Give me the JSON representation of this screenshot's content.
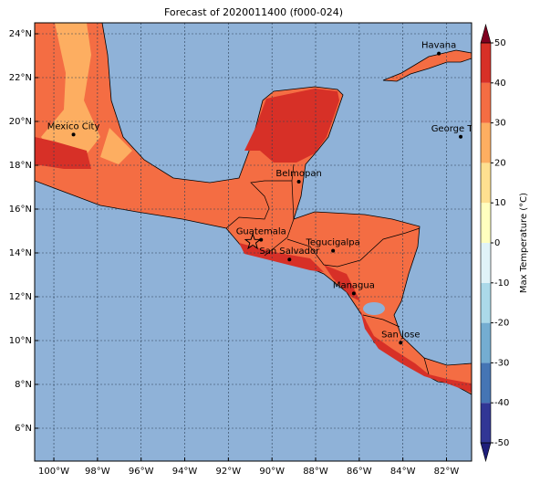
{
  "chart_data": {
    "type": "map",
    "title": "Forecast of 2020011400 (f000-024)",
    "xlim": [
      -100.88,
      -80.85
    ],
    "ylim": [
      4.5,
      24.5
    ],
    "xticks": [
      {
        "value": -100,
        "label": "100°W"
      },
      {
        "value": -98,
        "label": "98°W"
      },
      {
        "value": -96,
        "label": "96°W"
      },
      {
        "value": -94,
        "label": "94°W"
      },
      {
        "value": -92,
        "label": "92°W"
      },
      {
        "value": -90,
        "label": "90°W"
      },
      {
        "value": -88,
        "label": "88°W"
      },
      {
        "value": -86,
        "label": "86°W"
      },
      {
        "value": -84,
        "label": "84°W"
      },
      {
        "value": -82,
        "label": "82°W"
      }
    ],
    "yticks": [
      {
        "value": 6,
        "label": "6°N"
      },
      {
        "value": 8,
        "label": "8°N"
      },
      {
        "value": 10,
        "label": "10°N"
      },
      {
        "value": 12,
        "label": "12°N"
      },
      {
        "value": 14,
        "label": "14°N"
      },
      {
        "value": 16,
        "label": "16°N"
      },
      {
        "value": 18,
        "label": "18°N"
      },
      {
        "value": 20,
        "label": "20°N"
      },
      {
        "value": 22,
        "label": "22°N"
      },
      {
        "value": 24,
        "label": "24°N"
      }
    ],
    "grid": true,
    "ocean_color": "#8fb2d8",
    "cities": [
      {
        "name": "Mexico City",
        "lon": -99.1,
        "lat": 19.4
      },
      {
        "name": "Havana",
        "lon": -82.35,
        "lat": 23.1
      },
      {
        "name": "George Town",
        "lon": -81.35,
        "lat": 19.3
      },
      {
        "name": "Belmopan",
        "lon": -88.77,
        "lat": 17.25
      },
      {
        "name": "Guatemala",
        "lon": -90.5,
        "lat": 14.6
      },
      {
        "name": "San Salvador",
        "lon": -89.2,
        "lat": 13.7
      },
      {
        "name": "Tegucigalpa",
        "lon": -87.2,
        "lat": 14.1
      },
      {
        "name": "Managua",
        "lon": -86.25,
        "lat": 12.15
      },
      {
        "name": "San Jose",
        "lon": -84.1,
        "lat": 9.9
      }
    ],
    "marker": {
      "lon": -90.88,
      "lat": 14.5
    },
    "colorbar": {
      "label": "Max Temperature (°C)",
      "ticks": [
        -50,
        -40,
        -30,
        -20,
        -10,
        0,
        10,
        20,
        30,
        40,
        50
      ],
      "colors": [
        "#313695",
        "#4575b4",
        "#74add1",
        "#abd9e9",
        "#e0f3f8",
        "#ffffbf",
        "#fee090",
        "#fdae61",
        "#f46d43",
        "#d73027",
        "#a50026"
      ],
      "under": "#1f1f7a",
      "over": "#7f0020"
    }
  }
}
